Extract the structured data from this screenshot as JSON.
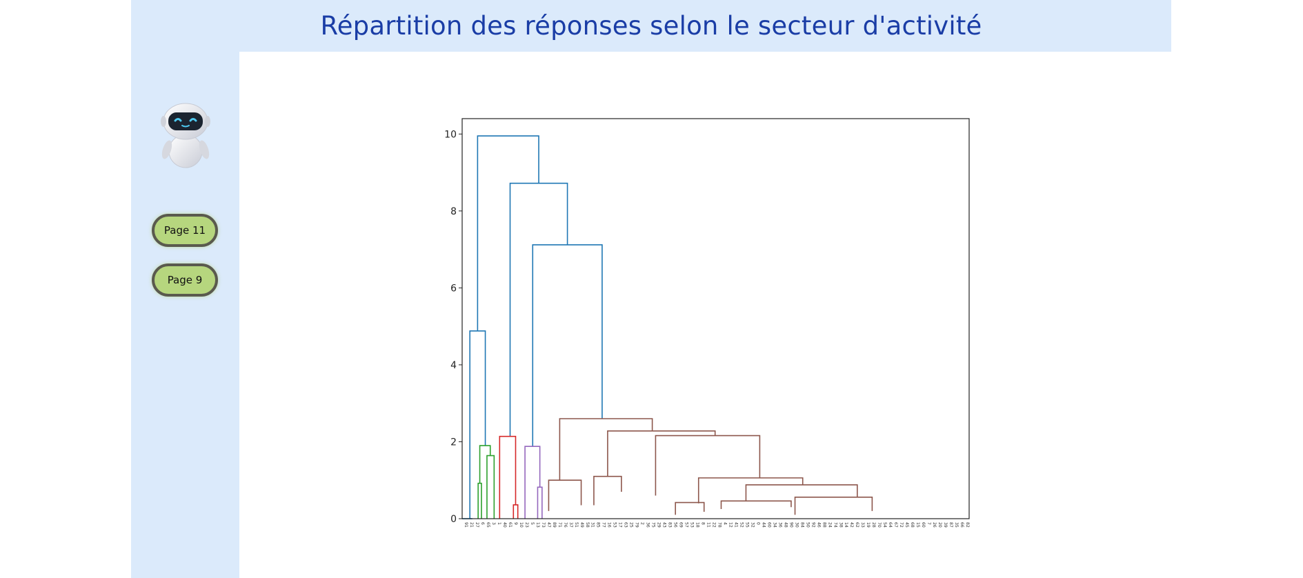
{
  "header": {
    "title": "Répartition des réponses selon le secteur d'activité"
  },
  "sidebar": {
    "avatar_icon": "robot-icon",
    "buttons": [
      {
        "label": "Page 11"
      },
      {
        "label": "Page 9"
      }
    ]
  },
  "chart_data": {
    "type": "dendrogram",
    "title": "",
    "xlabel": "",
    "ylabel": "",
    "ylim": [
      0,
      10.4
    ],
    "yticks": [
      0,
      2,
      4,
      6,
      8,
      10
    ],
    "grid": false,
    "legend": "none",
    "leaf_labels": [
      "91",
      "21",
      "27",
      "6",
      "65",
      "3",
      "1",
      "40",
      "61",
      "9",
      "10",
      "23",
      "5",
      "13",
      "73",
      "47",
      "89",
      "71",
      "76",
      "37",
      "51",
      "49",
      "58",
      "31",
      "85",
      "77",
      "16",
      "53",
      "17",
      "63",
      "25",
      "79",
      "2",
      "36",
      "75",
      "29",
      "43",
      "83",
      "56",
      "69",
      "57",
      "53",
      "18",
      "8",
      "11",
      "22",
      "78",
      "4",
      "12",
      "41",
      "52",
      "55",
      "32",
      "0",
      "44",
      "60",
      "34",
      "36",
      "48",
      "90",
      "30",
      "84",
      "50",
      "92",
      "46",
      "88",
      "24",
      "74",
      "38",
      "14",
      "42",
      "62",
      "33",
      "19",
      "28",
      "70",
      "54",
      "64",
      "67",
      "72",
      "45",
      "68",
      "15",
      "60",
      "7",
      "26",
      "20",
      "39",
      "87",
      "35",
      "66",
      "82"
    ],
    "colors": {
      "link_above_threshold": "#1f77b4",
      "cluster_green": "#2ca02c",
      "cluster_red": "#d62728",
      "cluster_purple": "#9467bd",
      "cluster_brown": "#8c564b"
    },
    "links": [
      {
        "color": "#1f77b4",
        "x": [
          0.9,
          0.9,
          3.7,
          3.7
        ],
        "y": [
          0,
          4.88,
          4.88,
          1.9
        ]
      },
      {
        "color": "#1f77b4",
        "x": [
          2.3,
          2.3,
          13.4,
          13.4
        ],
        "y": [
          4.88,
          9.95,
          9.95,
          8.72
        ]
      },
      {
        "color": "#1f77b4",
        "x": [
          8.2,
          8.2,
          18.6,
          18.6
        ],
        "y": [
          2.14,
          8.72,
          8.72,
          7.12
        ]
      },
      {
        "color": "#1f77b4",
        "x": [
          12.3,
          12.3,
          24.9,
          24.9
        ],
        "y": [
          1.88,
          7.12,
          7.12,
          2.6
        ]
      },
      {
        "color": "#2ca02c",
        "x": [
          2.7,
          2.7,
          4.6,
          4.6
        ],
        "y": [
          0.92,
          1.9,
          1.9,
          1.64
        ]
      },
      {
        "color": "#2ca02c",
        "x": [
          2.4,
          2.4,
          3.0,
          3.0
        ],
        "y": [
          0,
          0.92,
          0.92,
          0
        ]
      },
      {
        "color": "#2ca02c",
        "x": [
          4.0,
          4.0,
          5.3,
          5.3
        ],
        "y": [
          0,
          1.64,
          1.64,
          0
        ]
      },
      {
        "color": "#d62728",
        "x": [
          6.3,
          6.3,
          9.2,
          9.2
        ],
        "y": [
          0,
          2.14,
          2.14,
          0.36
        ]
      },
      {
        "color": "#d62728",
        "x": [
          8.8,
          8.8,
          9.6,
          9.6
        ],
        "y": [
          0,
          0.36,
          0.36,
          0
        ]
      },
      {
        "color": "#9467bd",
        "x": [
          10.9,
          10.9,
          13.6,
          13.6
        ],
        "y": [
          0,
          1.88,
          1.88,
          0.82
        ]
      },
      {
        "color": "#9467bd",
        "x": [
          13.2,
          13.2,
          14.0,
          14.0
        ],
        "y": [
          0,
          0.82,
          0.82,
          0
        ]
      },
      {
        "color": "#8c564b",
        "x": [
          17.2,
          17.2,
          34.0,
          34.0
        ],
        "y": [
          1.0,
          2.6,
          2.6,
          2.28
        ]
      },
      {
        "color": "#8c564b",
        "x": [
          15.2,
          15.2,
          21.1,
          21.1
        ],
        "y": [
          0.2,
          1.0,
          1.0,
          0.35
        ]
      },
      {
        "color": "#8c564b",
        "x": [
          25.9,
          25.9,
          45.4,
          45.4
        ],
        "y": [
          1.1,
          2.28,
          2.28,
          2.16
        ]
      },
      {
        "color": "#8c564b",
        "x": [
          23.4,
          23.4,
          28.4,
          28.4
        ],
        "y": [
          0.35,
          1.1,
          1.1,
          0.7
        ]
      },
      {
        "color": "#8c564b",
        "x": [
          34.6,
          34.6,
          53.5,
          53.5
        ],
        "y": [
          0.6,
          2.16,
          2.16,
          1.06
        ]
      },
      {
        "color": "#8c564b",
        "x": [
          42.4,
          42.4,
          61.3,
          61.3
        ],
        "y": [
          0.4,
          1.06,
          1.06,
          0.88
        ]
      },
      {
        "color": "#8c564b",
        "x": [
          51.0,
          51.0,
          71.2,
          71.2
        ],
        "y": [
          0.45,
          0.88,
          0.88,
          0.56
        ]
      },
      {
        "color": "#8c564b",
        "x": [
          46.5,
          46.5,
          59.2,
          59.2
        ],
        "y": [
          0.25,
          0.46,
          0.46,
          0.3
        ]
      },
      {
        "color": "#8c564b",
        "x": [
          38.2,
          38.2,
          43.4,
          43.4
        ],
        "y": [
          0.1,
          0.42,
          0.42,
          0.18
        ]
      },
      {
        "color": "#8c564b",
        "x": [
          59.9,
          59.9,
          73.9,
          73.9
        ],
        "y": [
          0.1,
          0.56,
          0.56,
          0.2
        ]
      }
    ]
  }
}
